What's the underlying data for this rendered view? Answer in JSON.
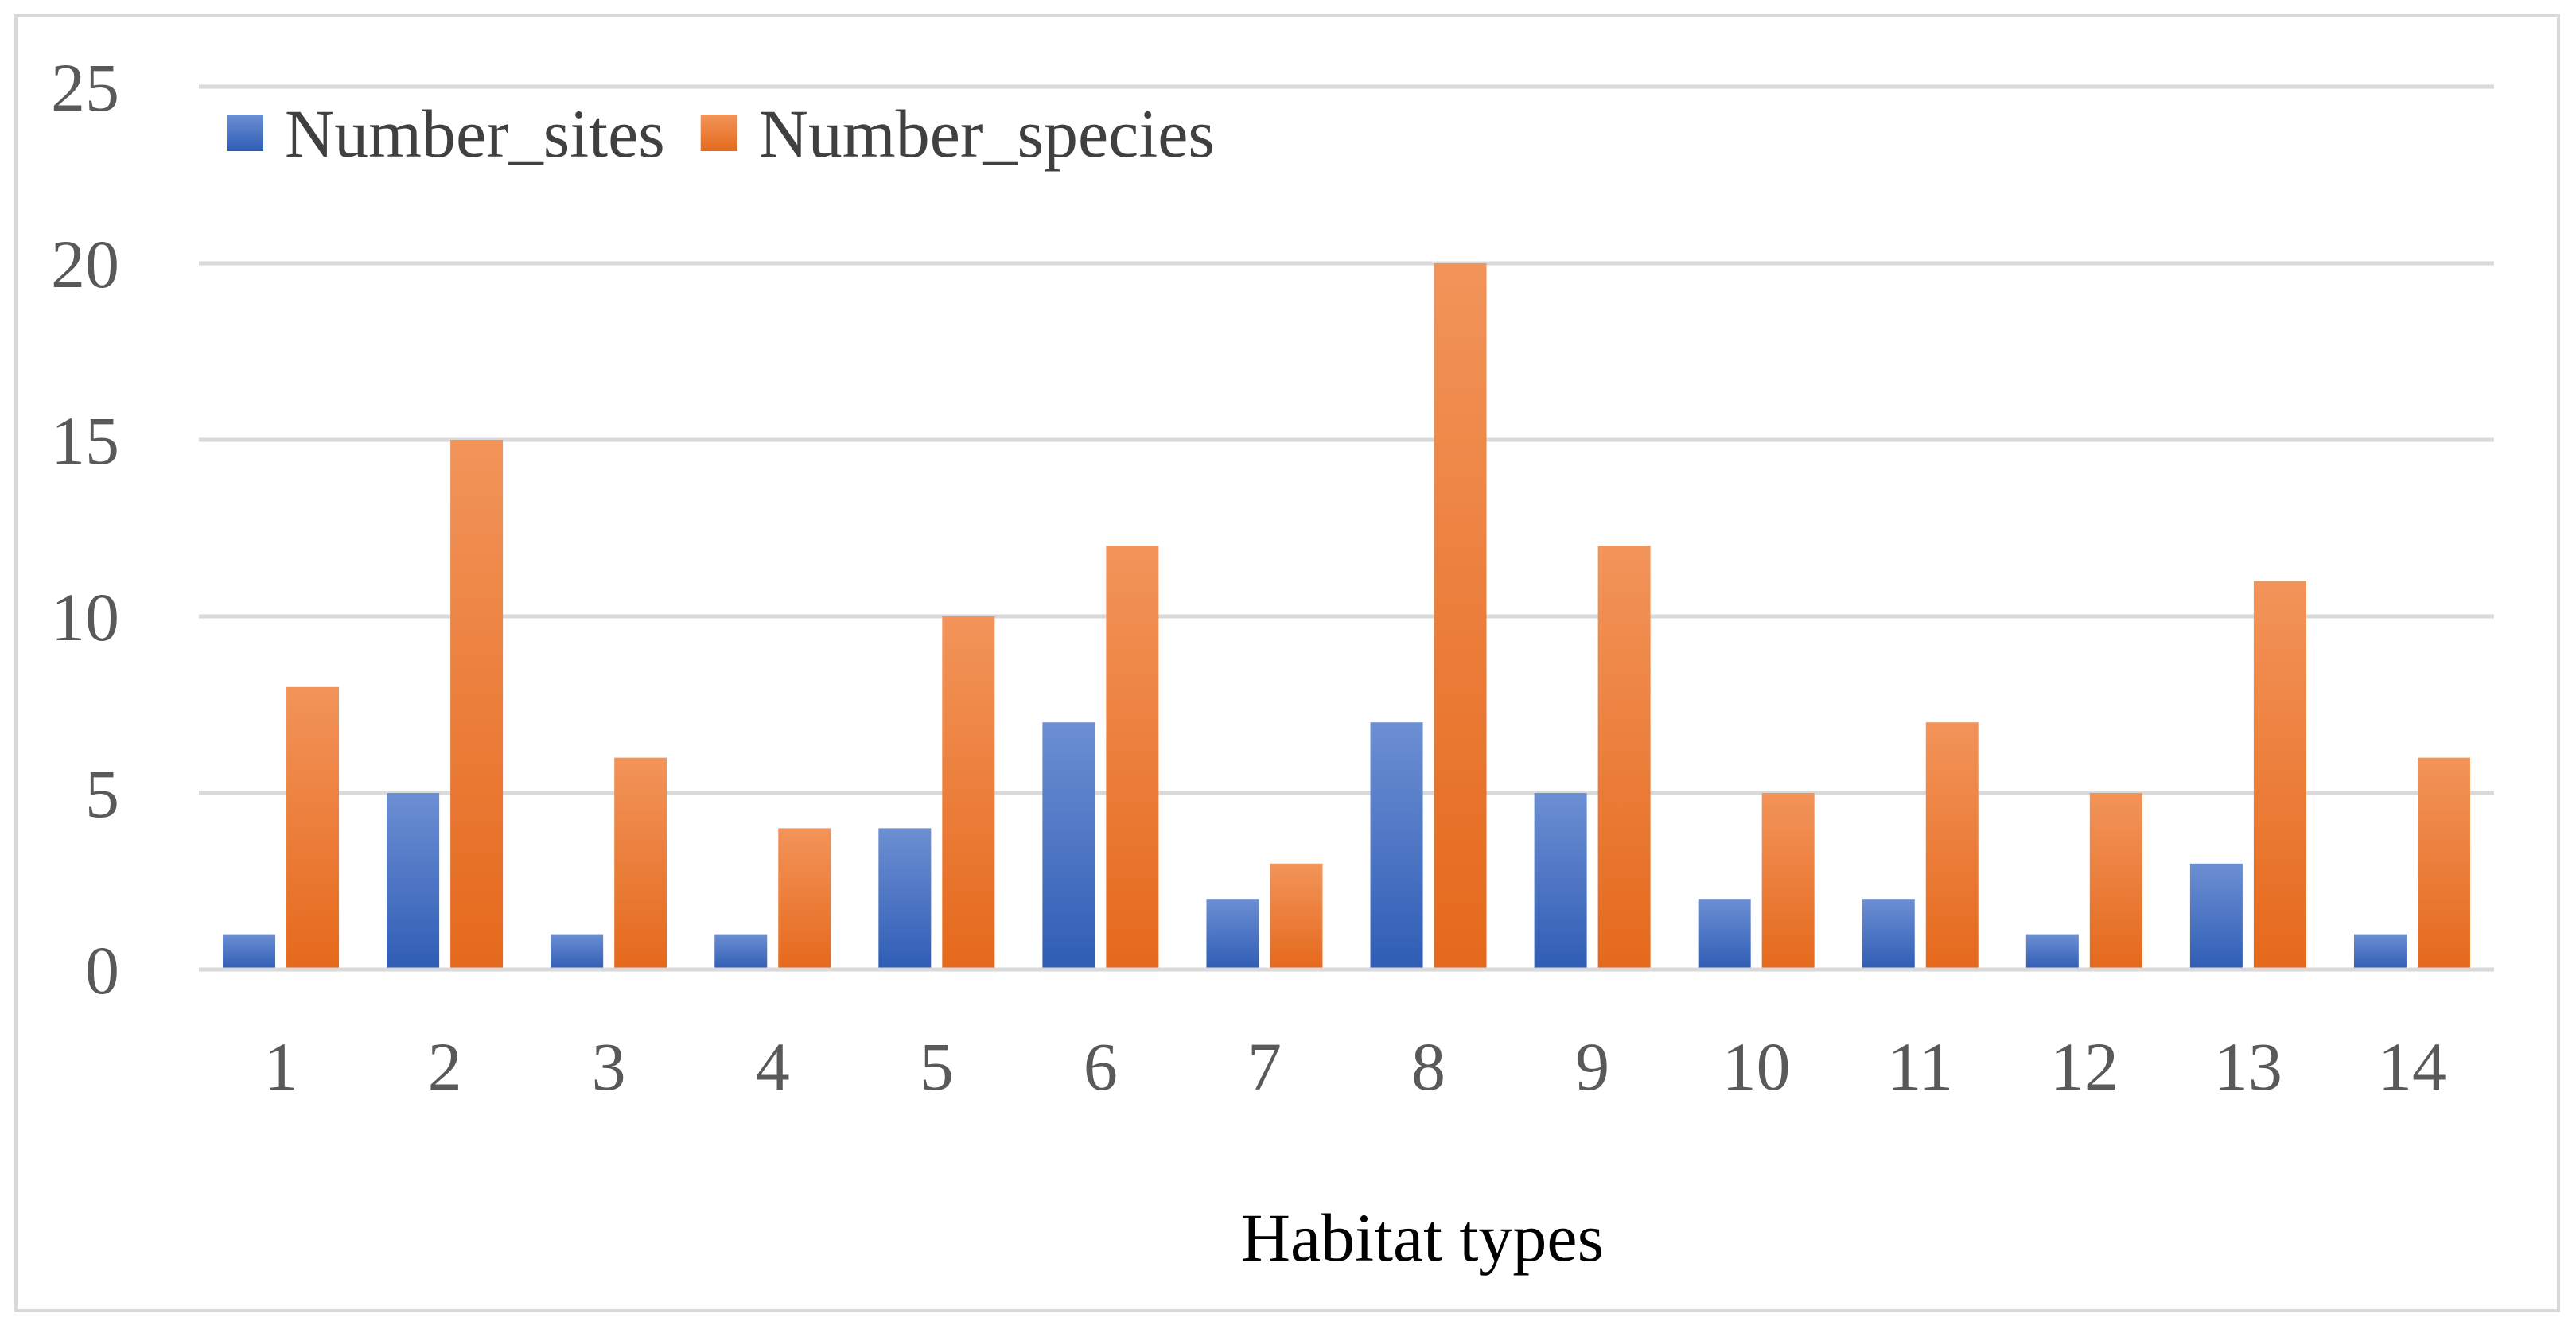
{
  "chart_data": {
    "type": "bar",
    "title": "",
    "xlabel": "Habitat types",
    "ylabel": "",
    "categories": [
      "1",
      "2",
      "3",
      "4",
      "5",
      "6",
      "7",
      "8",
      "9",
      "10",
      "11",
      "12",
      "13",
      "14"
    ],
    "series": [
      {
        "name": "Number_sites",
        "color": "#4472c4",
        "values": [
          1,
          5,
          1,
          1,
          4,
          7,
          2,
          7,
          5,
          2,
          2,
          1,
          3,
          1
        ]
      },
      {
        "name": "Number_species",
        "color": "#ed7d31",
        "values": [
          8,
          15,
          6,
          4,
          10,
          12,
          3,
          20,
          12,
          5,
          7,
          5,
          11,
          6
        ]
      }
    ],
    "ylim": [
      0,
      25
    ],
    "yticks": [
      0,
      5,
      10,
      15,
      20,
      25
    ],
    "grid": true,
    "legend_position": "top-left"
  }
}
